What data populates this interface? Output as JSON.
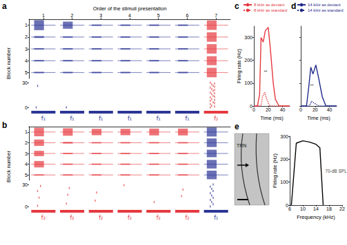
{
  "chart_data": [
    {
      "type": "raster",
      "panel": "a",
      "title": "Order of the stimuli presentation",
      "xlim": [
        0.5,
        7.5
      ],
      "xticks": [
        1,
        2,
        3,
        4,
        5,
        6,
        7
      ],
      "stimuli": [
        {
          "label": "f₁",
          "color": "#2b3595"
        },
        {
          "label": "f₁",
          "color": "#2b3595"
        },
        {
          "label": "f₁",
          "color": "#2b3595"
        },
        {
          "label": "f₁",
          "color": "#2b3595"
        },
        {
          "label": "f₁",
          "color": "#2b3595"
        },
        {
          "label": "f₁",
          "color": "#2b3595"
        },
        {
          "label": "f₂",
          "color": "#e5393f"
        }
      ],
      "ylabel": "Block number",
      "ylim": [
        0.5,
        5.5
      ],
      "yticks": [
        1,
        2,
        3,
        4,
        5
      ],
      "trace_amplitude": [
        [
          0.42,
          0.3,
          0.06,
          0.06,
          0.06,
          0.06,
          0.4
        ],
        [
          0.08,
          0.06,
          0.06,
          0.06,
          0.06,
          0.06,
          0.4
        ],
        [
          0.06,
          0.06,
          0.06,
          0.06,
          0.06,
          0.06,
          0.4
        ],
        [
          0.06,
          0.06,
          0.06,
          0.06,
          0.06,
          0.06,
          0.38
        ],
        [
          0.06,
          0.06,
          0.06,
          0.06,
          0.06,
          0.06,
          0.4
        ]
      ],
      "raster_ylim": [
        0,
        30
      ],
      "raster_yticks": [
        0,
        30
      ],
      "spikes": [
        [
          0.75,
          0
        ],
        [
          0.8,
          26
        ],
        [
          1.8,
          0
        ],
        [
          6.8,
          0
        ],
        [
          6.85,
          2
        ],
        [
          6.8,
          4
        ],
        [
          6.9,
          6
        ],
        [
          6.8,
          8
        ],
        [
          6.85,
          10
        ],
        [
          6.8,
          12
        ],
        [
          6.9,
          14
        ],
        [
          6.85,
          16
        ],
        [
          6.8,
          18
        ],
        [
          6.9,
          20
        ],
        [
          6.85,
          22
        ],
        [
          6.8,
          24
        ],
        [
          6.9,
          26
        ],
        [
          6.85,
          28
        ],
        [
          6.8,
          30
        ],
        [
          6.95,
          1
        ],
        [
          6.95,
          5
        ],
        [
          6.95,
          9
        ],
        [
          6.95,
          13
        ],
        [
          6.95,
          17
        ],
        [
          6.95,
          21
        ],
        [
          6.95,
          25
        ],
        [
          6.95,
          29
        ]
      ]
    },
    {
      "type": "raster",
      "panel": "b",
      "tick_labels": "y",
      "xlim": [
        0.5,
        7.5
      ],
      "stimuli": [
        {
          "label": "f₂",
          "color": "#e5393f"
        },
        {
          "label": "f₂",
          "color": "#e5393f"
        },
        {
          "label": "f₂",
          "color": "#e5393f"
        },
        {
          "label": "f₂",
          "color": "#e5393f"
        },
        {
          "label": "f₂",
          "color": "#e5393f"
        },
        {
          "label": "f₂",
          "color": "#e5393f"
        },
        {
          "label": "f₁",
          "color": "#2b3595"
        }
      ],
      "ylabel": "Block number",
      "ylim": [
        0.5,
        5.5
      ],
      "yticks": [
        1,
        2,
        3,
        4,
        5
      ],
      "trace_amplitude": [
        [
          0.4,
          0.35,
          0.3,
          0.3,
          0.32,
          0.32,
          0.42
        ],
        [
          0.3,
          0.08,
          0.06,
          0.06,
          0.06,
          0.06,
          0.4
        ],
        [
          0.25,
          0.06,
          0.06,
          0.06,
          0.06,
          0.06,
          0.35
        ],
        [
          0.3,
          0.06,
          0.06,
          0.06,
          0.06,
          0.06,
          0.4
        ],
        [
          0.06,
          0.06,
          0.06,
          0.06,
          0.06,
          0.06,
          0.4
        ]
      ],
      "raster_ylim": [
        0,
        30
      ],
      "raster_yticks": [
        0,
        30
      ],
      "spikes": [
        [
          0.8,
          1
        ],
        [
          0.85,
          12
        ],
        [
          0.8,
          21
        ],
        [
          0.9,
          28
        ],
        [
          1.8,
          4
        ],
        [
          1.85,
          16
        ],
        [
          1.9,
          25
        ],
        [
          2.8,
          8
        ],
        [
          2.85,
          19
        ],
        [
          3.8,
          29
        ],
        [
          4.85,
          6
        ],
        [
          5.8,
          14
        ],
        [
          5.85,
          23
        ],
        [
          6.8,
          0
        ],
        [
          6.9,
          3
        ],
        [
          6.85,
          6
        ],
        [
          6.8,
          9
        ],
        [
          6.9,
          12
        ],
        [
          6.85,
          15
        ],
        [
          6.8,
          18
        ],
        [
          6.9,
          21
        ],
        [
          6.85,
          24
        ],
        [
          6.8,
          27
        ],
        [
          6.9,
          30
        ]
      ]
    },
    {
      "type": "line",
      "panel": "c",
      "xlabel": "Time (ms)",
      "ylabel": "Firing rate (Hz)",
      "xlim": [
        0,
        50
      ],
      "xticks": [
        0,
        20,
        40
      ],
      "ylim": [
        0,
        350
      ],
      "yticks": [
        0,
        100,
        200,
        300
      ],
      "legend": "top",
      "series": [
        {
          "name": "8 kHz as deviant",
          "color": "#e5393f",
          "line_style": "solid",
          "x": [
            0,
            5,
            8,
            10,
            13,
            16,
            20,
            23,
            27,
            30,
            35,
            50
          ],
          "values": [
            0,
            0,
            50,
            300,
            280,
            330,
            345,
            250,
            100,
            30,
            0,
            0
          ]
        },
        {
          "name": "8 kHz as standard",
          "color": "#e5393f",
          "line_style": "dotted",
          "x": [
            0,
            10,
            12,
            15,
            18,
            22,
            50
          ],
          "values": [
            0,
            0,
            40,
            60,
            30,
            0,
            0
          ]
        }
      ],
      "annotations": [
        {
          "text": "**",
          "x": 13,
          "y": 150
        }
      ]
    },
    {
      "type": "line",
      "panel": "d",
      "xlabel": "Time (ms)",
      "tick_labels": "x",
      "xlim": [
        0,
        50
      ],
      "xticks": [
        0,
        20,
        40
      ],
      "ylim": [
        0,
        350
      ],
      "yticks": [
        0,
        100,
        200,
        300
      ],
      "legend": "top",
      "series": [
        {
          "name": "14 kHz as deviant",
          "color": "#1f2a8a",
          "line_style": "solid",
          "x": [
            0,
            8,
            11,
            14,
            17,
            21,
            25,
            30,
            35,
            50
          ],
          "values": [
            0,
            0,
            80,
            170,
            140,
            180,
            120,
            40,
            0,
            0
          ]
        },
        {
          "name": "14 kHz as standard",
          "color": "#1f2a8a",
          "line_style": "dotted",
          "x": [
            0,
            12,
            15,
            20,
            25,
            50
          ],
          "values": [
            0,
            0,
            20,
            10,
            0,
            0
          ]
        }
      ],
      "annotations": [
        {
          "text": "**",
          "x": 12,
          "y": 90
        }
      ]
    },
    {
      "type": "image",
      "panel": "e",
      "label": "TRN"
    },
    {
      "type": "line",
      "xlabel": "Frequency (kHz)",
      "ylabel": "Firing rate (Hz)",
      "xlim": [
        6,
        22
      ],
      "xticks": [
        6,
        10,
        14,
        18,
        22
      ],
      "ylim": [
        0,
        300
      ],
      "yticks": [
        0,
        100,
        200,
        300
      ],
      "series": [
        {
          "color": "#000000",
          "line_style": "solid",
          "x": [
            6.5,
            8,
            10,
            12,
            14,
            15.2,
            16.2
          ],
          "values": [
            0,
            270,
            280,
            275,
            265,
            250,
            0
          ]
        }
      ],
      "annotations": [
        {
          "text": "70-dB SPL",
          "x": 16.6,
          "y": 150
        }
      ]
    }
  ]
}
